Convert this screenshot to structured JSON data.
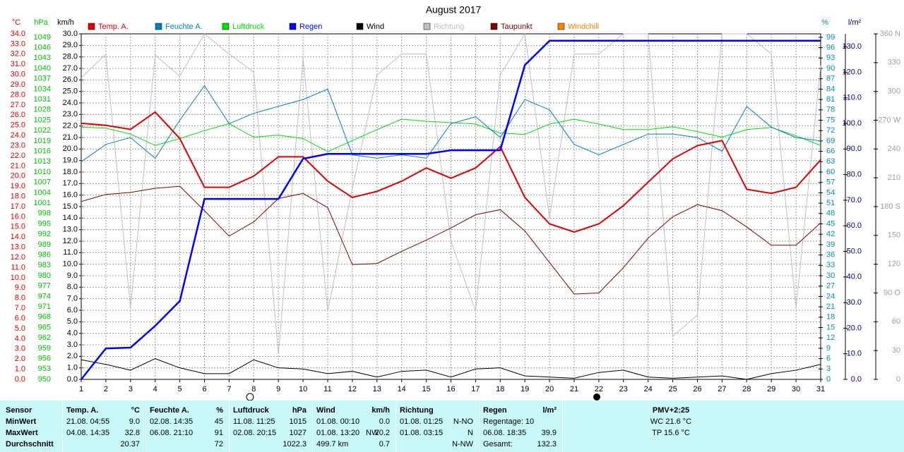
{
  "chart_data": {
    "type": "line",
    "title": "August 2017",
    "grid": true,
    "x": [
      1,
      2,
      3,
      4,
      5,
      6,
      7,
      8,
      9,
      10,
      11,
      12,
      13,
      14,
      15,
      16,
      17,
      18,
      19,
      20,
      21,
      22,
      23,
      24,
      25,
      26,
      27,
      28,
      29,
      30,
      31
    ],
    "xlim": [
      1,
      31
    ],
    "axes": [
      {
        "id": "temp",
        "title": "°C",
        "color": "#e00000",
        "lim": [
          0,
          34
        ],
        "ticks": [
          {
            "value": 0,
            "label": "0.0"
          },
          {
            "value": 1,
            "label": "1.0"
          },
          {
            "value": 2,
            "label": "2.0"
          },
          {
            "value": 3,
            "label": "3.0"
          },
          {
            "value": 4,
            "label": "4.0"
          },
          {
            "value": 5,
            "label": "5.0"
          },
          {
            "value": 6,
            "label": "6.0"
          },
          {
            "value": 7,
            "label": "7.0"
          },
          {
            "value": 8,
            "label": "8.0"
          },
          {
            "value": 9,
            "label": "9.0"
          },
          {
            "value": 10,
            "label": "10.0"
          },
          {
            "value": 11,
            "label": "11.0"
          },
          {
            "value": 12,
            "label": "12.0"
          },
          {
            "value": 13,
            "label": "13.0"
          },
          {
            "value": 14,
            "label": "14.0"
          },
          {
            "value": 15,
            "label": "15.0"
          },
          {
            "value": 16,
            "label": "16.0"
          },
          {
            "value": 17,
            "label": "17.0"
          },
          {
            "value": 18,
            "label": "18.0"
          },
          {
            "value": 19,
            "label": "19.0"
          },
          {
            "value": 20,
            "label": "20.0"
          },
          {
            "value": 21,
            "label": "21.0"
          },
          {
            "value": 22,
            "label": "22.0"
          },
          {
            "value": 23,
            "label": "23.0"
          },
          {
            "value": 24,
            "label": "24.0"
          },
          {
            "value": 25,
            "label": "25.0"
          },
          {
            "value": 26,
            "label": "26.0"
          },
          {
            "value": 27,
            "label": "27.0"
          },
          {
            "value": 28,
            "label": "28.0"
          },
          {
            "value": 29,
            "label": "29.0"
          },
          {
            "value": 30,
            "label": "30.0"
          },
          {
            "value": 31,
            "label": "31.0"
          },
          {
            "value": 32,
            "label": "32.0"
          },
          {
            "value": 33,
            "label": "33.0"
          },
          {
            "value": 34,
            "label": "34.0"
          }
        ]
      },
      {
        "id": "hpa",
        "title": "hPa",
        "color": "#00c000",
        "lim": [
          950,
          1050
        ],
        "ticks": [
          950,
          953,
          956,
          959,
          962,
          965,
          968,
          971,
          974,
          977,
          980,
          983,
          986,
          989,
          992,
          995,
          998,
          1001,
          1004,
          1007,
          1010,
          1013,
          1016,
          1019,
          1022,
          1025,
          1028,
          1031,
          1034,
          1037,
          1040,
          1043,
          1046,
          1049
        ]
      },
      {
        "id": "kmh",
        "title": "km/h",
        "color": "#000000",
        "lim": [
          0,
          30
        ],
        "ticks": [
          {
            "value": 0,
            "label": "0.0"
          },
          {
            "value": 1,
            "label": "1.0"
          },
          {
            "value": 2,
            "label": "2.0"
          },
          {
            "value": 3,
            "label": "3.0"
          },
          {
            "value": 4,
            "label": "4.0"
          },
          {
            "value": 5,
            "label": "5.0"
          },
          {
            "value": 6,
            "label": "6.0"
          },
          {
            "value": 7,
            "label": "7.0"
          },
          {
            "value": 8,
            "label": "8.0"
          },
          {
            "value": 9,
            "label": "9.0"
          },
          {
            "value": 10,
            "label": "10.0"
          },
          {
            "value": 11,
            "label": "11.0"
          },
          {
            "value": 12,
            "label": "12.0"
          },
          {
            "value": 13,
            "label": "13.0"
          },
          {
            "value": 14,
            "label": "14.0"
          },
          {
            "value": 15,
            "label": "15.0"
          },
          {
            "value": 16,
            "label": "16.0"
          },
          {
            "value": 17,
            "label": "17.0"
          },
          {
            "value": 18,
            "label": "18.0"
          },
          {
            "value": 19,
            "label": "19.0"
          },
          {
            "value": 20,
            "label": "20.0"
          },
          {
            "value": 21,
            "label": "21.0"
          },
          {
            "value": 22,
            "label": "22.0"
          },
          {
            "value": 23,
            "label": "23.0"
          },
          {
            "value": 24,
            "label": "24.0"
          },
          {
            "value": 25,
            "label": "25.0"
          },
          {
            "value": 26,
            "label": "26.0"
          },
          {
            "value": 27,
            "label": "27.0"
          },
          {
            "value": 28,
            "label": "28.0"
          },
          {
            "value": 29,
            "label": "29.0"
          },
          {
            "value": 30,
            "label": "30.0"
          }
        ]
      },
      {
        "id": "pct",
        "title": "%",
        "color": "#0090b0",
        "lim": [
          0,
          100
        ],
        "ticks": [
          0,
          3,
          6,
          9,
          12,
          15,
          18,
          21,
          24,
          27,
          30,
          33,
          36,
          39,
          42,
          45,
          48,
          51,
          54,
          57,
          60,
          63,
          66,
          69,
          72,
          75,
          78,
          81,
          84,
          87,
          90,
          93,
          96,
          99
        ]
      },
      {
        "id": "rain",
        "title": "l/m²",
        "color": "#000080",
        "lim": [
          0,
          135
        ],
        "ticks": [
          {
            "value": 0,
            "label": "0.0"
          },
          {
            "value": 10,
            "label": "10.0"
          },
          {
            "value": 20,
            "label": "20.0"
          },
          {
            "value": 30,
            "label": "30.0"
          },
          {
            "value": 40,
            "label": "40.0"
          },
          {
            "value": 50,
            "label": "50.0"
          },
          {
            "value": 60,
            "label": "60.0"
          },
          {
            "value": 70,
            "label": "70.0"
          },
          {
            "value": 80,
            "label": "80.0"
          },
          {
            "value": 90,
            "label": "90.0"
          },
          {
            "value": 100,
            "label": "100.0"
          },
          {
            "value": 110,
            "label": "110.0"
          },
          {
            "value": 120,
            "label": "120.0"
          },
          {
            "value": 130,
            "label": "130.0"
          }
        ]
      },
      {
        "id": "dir",
        "color": "#a0a0a0",
        "lim": [
          0,
          360
        ],
        "ticks": [
          0,
          30,
          60,
          {
            "value": 90,
            "label": "90 O"
          },
          120,
          150,
          {
            "value": 180,
            "label": "180 S"
          },
          210,
          240,
          {
            "value": 270,
            "label": "270 W"
          },
          300,
          330,
          {
            "value": 360,
            "label": "360 N"
          }
        ]
      }
    ],
    "series": [
      {
        "name": "Temp. A.",
        "color": "#e00000",
        "axis": "temp",
        "width": 2,
        "values": [
          25.2,
          25.0,
          24.6,
          26.3,
          23.7,
          18.9,
          18.9,
          20.0,
          21.9,
          21.9,
          19.5,
          17.9,
          18.5,
          19.5,
          20.8,
          19.8,
          20.8,
          22.9,
          17.9,
          15.3,
          14.5,
          15.3,
          17.1,
          19.4,
          21.7,
          23.0,
          23.5,
          18.7,
          18.3,
          18.9,
          21.6
        ]
      },
      {
        "name": "Feuchte A.",
        "color": "#0080c0",
        "axis": "pct",
        "width": 1,
        "values": [
          63,
          68,
          70,
          64,
          75,
          85,
          74,
          77,
          79,
          81,
          84,
          65,
          64,
          65,
          64,
          74,
          76,
          70,
          81,
          78,
          68,
          65,
          68,
          71,
          71,
          70,
          66,
          79,
          73,
          70,
          69
        ]
      },
      {
        "name": "Luftdruck",
        "color": "#00e000",
        "axis": "hpa",
        "width": 1,
        "values": [
          1023,
          1022.7,
          1021,
          1017.7,
          1019.7,
          1022,
          1024,
          1020.1,
          1020.7,
          1019.7,
          1015.9,
          1019.1,
          1022.3,
          1025.3,
          1024.7,
          1024.3,
          1023.9,
          1021.3,
          1020.9,
          1023.9,
          1025.3,
          1023.9,
          1022.3,
          1022.3,
          1023.1,
          1021.7,
          1020.1,
          1022.3,
          1022.9,
          1020.5,
          1017.7
        ]
      },
      {
        "name": "Regen",
        "color": "#0000ff",
        "axis": "rain",
        "width": 2.5,
        "values": [
          0,
          12.1,
          12.4,
          20.9,
          30.6,
          70.5,
          70.5,
          70.5,
          70.5,
          86.2,
          88.1,
          88.1,
          88.1,
          88.1,
          88.1,
          89.5,
          89.5,
          89.5,
          122.8,
          132.3,
          132.3,
          132.3,
          132.3,
          132.3,
          132.3,
          132.3,
          132.3,
          132.3,
          132.3,
          132.3,
          132.3
        ]
      },
      {
        "name": "Wind",
        "color": "#000000",
        "axis": "kmh",
        "width": 1,
        "values": [
          1.7,
          1.3,
          0.8,
          1.8,
          1.0,
          0.5,
          0.5,
          1.7,
          1.0,
          0.9,
          0.5,
          0.7,
          0.2,
          0.7,
          0.8,
          0.2,
          0.9,
          1.0,
          0.3,
          0.2,
          0.1,
          0.6,
          0.8,
          0.2,
          0.1,
          0.2,
          0.3,
          0.0,
          0.5,
          0.8,
          1.3
        ]
      },
      {
        "name": "Richtung",
        "color": "#c0c0c0",
        "axis": "dir",
        "width": 1,
        "values": [
          314,
          339,
          74,
          338,
          316,
          360,
          339,
          320,
          26,
          335,
          71,
          199,
          317,
          339,
          339,
          144,
          71,
          317,
          360,
          168,
          339,
          339,
          360,
          360,
          45,
          67,
          360,
          360,
          339,
          74,
          327
        ]
      },
      {
        "name": "Taupunkt",
        "color": "#800000",
        "axis": "temp",
        "width": 1,
        "values": [
          17.5,
          18.2,
          18.4,
          18.8,
          19.0,
          16.6,
          14.1,
          15.5,
          17.8,
          18.3,
          16.9,
          11.3,
          11.4,
          12.6,
          13.7,
          14.9,
          16.2,
          16.7,
          14.6,
          11.5,
          8.4,
          8.5,
          11.0,
          13.9,
          16.0,
          17.2,
          16.6,
          15.0,
          13.2,
          13.2,
          15.4
        ]
      },
      {
        "name": "Windchill",
        "color": "#ff8000"
      }
    ]
  },
  "stats": {
    "labels": [
      "Sensor",
      "MinWert",
      "MaxWert",
      "Durchschnitt"
    ],
    "columns": [
      {
        "title": "Temp. A.",
        "unit": "°C",
        "min": {
          "when": "21.08. 04:55",
          "value": "9.0"
        },
        "max": {
          "when": "04.08. 14:35",
          "value": "32.8"
        },
        "avg": {
          "value": "20.37"
        }
      },
      {
        "title": "Feuchte A.",
        "unit": "%",
        "min": {
          "when": "02.08. 14:35",
          "value": "45"
        },
        "max": {
          "when": "06.08. 21:10",
          "value": "91"
        },
        "avg": {
          "value": "72"
        }
      },
      {
        "title": "Luftdruck",
        "unit": "hPa",
        "min": {
          "when": "11.08. 11:25",
          "value": "1015"
        },
        "max": {
          "when": "02.08. 20:15",
          "value": "1027"
        },
        "avg": {
          "value": "1022.3"
        }
      },
      {
        "title": "Wind",
        "unit": "km/h",
        "min": {
          "when": "01.08. 00:10",
          "value": "0.0"
        },
        "max": {
          "when": "01.08. 13:20",
          "dir": "NW",
          "value": "20.2"
        },
        "avg": {
          "when": "499.7 km",
          "value": "0.7"
        }
      },
      {
        "title": "Richtung",
        "min": {
          "when": "01.08. 01:25",
          "value": "N-NO"
        },
        "max": {
          "when": "01.08. 03:15",
          "value": "N"
        },
        "avg": {
          "value": "N-NW"
        }
      },
      {
        "title": "Regen",
        "unit": "l/m²",
        "min": {
          "when": "Regentage: 10"
        },
        "max": {
          "when": "06.08. 18:35",
          "value": "39.9"
        },
        "avg": {
          "when": "Gesamt:",
          "value": "132.3"
        }
      }
    ],
    "pmv": {
      "title": "PMV+2:25",
      "min": "WC 21.6 °C",
      "max": "TP 15.6 °C"
    }
  }
}
